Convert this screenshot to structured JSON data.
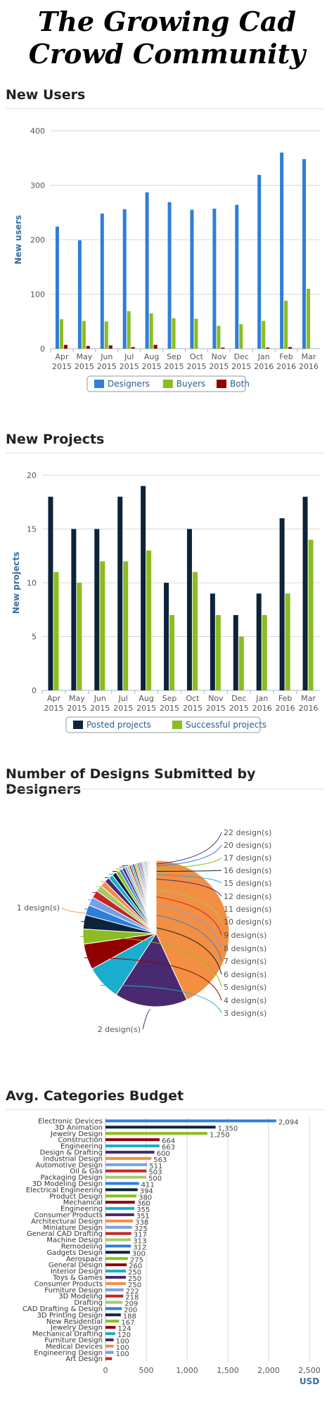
{
  "page": {
    "title": "The Growing Cad Crowd Community"
  },
  "sections": {
    "new_users": "New Users",
    "new_projects": "New Projects",
    "designs": "Number of Designs Submitted by Designers",
    "budget": "Avg. Categories Budget"
  },
  "chart_data": [
    {
      "id": "new_users",
      "type": "bar",
      "title": "New Users",
      "ylabel": "New users",
      "ylim": [
        0,
        400
      ],
      "yticks": [
        0,
        100,
        200,
        300,
        400
      ],
      "grid": true,
      "legend_position": "bottom-center",
      "categories": [
        [
          "Apr",
          "2015"
        ],
        [
          "May",
          "2015"
        ],
        [
          "Jun",
          "2015"
        ],
        [
          "Jul",
          "2015"
        ],
        [
          "Aug",
          "2015"
        ],
        [
          "Sep",
          "2015"
        ],
        [
          "Oct",
          "2015"
        ],
        [
          "Nov",
          "2015"
        ],
        [
          "Dec",
          "2015"
        ],
        [
          "Jan",
          "2016"
        ],
        [
          "Feb",
          "2016"
        ],
        [
          "Mar",
          "2016"
        ]
      ],
      "series": [
        {
          "name": "Designers",
          "color": "#2f7ed8",
          "values": [
            224,
            199,
            248,
            256,
            287,
            269,
            255,
            257,
            264,
            319,
            360,
            348
          ]
        },
        {
          "name": "Buyers",
          "color": "#8bbc21",
          "values": [
            54,
            51,
            50,
            69,
            65,
            56,
            55,
            42,
            45,
            51,
            88,
            110
          ]
        },
        {
          "name": "Both",
          "color": "#910000",
          "values": [
            7,
            5,
            6,
            3,
            7,
            0,
            0,
            2,
            0,
            2,
            3,
            0
          ]
        }
      ]
    },
    {
      "id": "new_projects",
      "type": "bar",
      "title": "New Projects",
      "ylabel": "New projects",
      "ylim": [
        0,
        20
      ],
      "yticks": [
        0,
        5,
        10,
        15,
        20
      ],
      "grid": true,
      "legend_position": "bottom-center",
      "categories": [
        [
          "Apr",
          "2015"
        ],
        [
          "May",
          "2015"
        ],
        [
          "Jun",
          "2015"
        ],
        [
          "Jul",
          "2015"
        ],
        [
          "Aug",
          "2015"
        ],
        [
          "Sep",
          "2015"
        ],
        [
          "Oct",
          "2015"
        ],
        [
          "Nov",
          "2015"
        ],
        [
          "Dec",
          "2015"
        ],
        [
          "Jan",
          "2016"
        ],
        [
          "Feb",
          "2016"
        ],
        [
          "Mar",
          "2016"
        ]
      ],
      "series": [
        {
          "name": "Posted projects",
          "color": "#0d233a",
          "values": [
            18,
            15,
            15,
            18,
            19,
            10,
            15,
            9,
            7,
            9,
            16,
            18
          ]
        },
        {
          "name": "Successful projects",
          "color": "#8bbc21",
          "values": [
            11,
            10,
            12,
            12,
            13,
            7,
            11,
            7,
            5,
            7,
            9,
            14
          ]
        }
      ]
    },
    {
      "id": "designs",
      "type": "pie",
      "title": "Number of Designs Submitted by Designers",
      "slices": [
        {
          "label": "1 design(s)",
          "value": 41.5,
          "color": "#f28f43"
        },
        {
          "label": "2 design(s)",
          "value": 15.5,
          "color": "#492970"
        },
        {
          "label": "3 design(s)",
          "value": 7.5,
          "color": "#1aadce"
        },
        {
          "label": "4 design(s)",
          "value": 5.5,
          "color": "#910000"
        },
        {
          "label": "5 design(s)",
          "value": 3.2,
          "color": "#8bbc21"
        },
        {
          "label": "6 design(s)",
          "value": 3.0,
          "color": "#0d233a"
        },
        {
          "label": "7 design(s)",
          "value": 2.2,
          "color": "#2f7ed8"
        },
        {
          "label": "8 design(s)",
          "value": 1.8,
          "color": "#77a1e5"
        },
        {
          "label": "9 design(s)",
          "value": 1.6,
          "color": "#c42525"
        },
        {
          "label": "10 design(s)",
          "value": 1.4,
          "color": "#a6c96a"
        },
        {
          "label": "11 design(s)",
          "value": 1.2,
          "color": "#f28f43"
        },
        {
          "label": "12 design(s)",
          "value": 1.1,
          "color": "#492970"
        },
        {
          "label": "15 design(s)",
          "value": 1.0,
          "color": "#1aadce"
        },
        {
          "label": "16 design(s)",
          "value": 0.9,
          "color": "#0d233a"
        },
        {
          "label": "17 design(s)",
          "value": 0.8,
          "color": "#8bbc21"
        },
        {
          "label": "20 design(s)",
          "value": 0.7,
          "color": "#2f7ed8"
        },
        {
          "label": "22 design(s)",
          "value": 0.6,
          "color": "#492970"
        },
        {
          "label": "",
          "value": 0.5,
          "color": "#77a1e5"
        },
        {
          "label": "",
          "value": 0.45,
          "color": "#a6c96a"
        },
        {
          "label": "",
          "value": 0.42,
          "color": "#c42525"
        },
        {
          "label": "",
          "value": 0.4,
          "color": "#1aadce"
        },
        {
          "label": "",
          "value": 0.38,
          "color": "#0d233a"
        },
        {
          "label": "",
          "value": 0.35,
          "color": "#f28f43"
        },
        {
          "label": "",
          "value": 0.33,
          "color": "#8bbc21"
        },
        {
          "label": "",
          "value": 0.3,
          "color": "#492970"
        },
        {
          "label": "",
          "value": 0.3,
          "color": "#2f7ed8"
        },
        {
          "label": "",
          "value": 0.28,
          "color": "#910000"
        },
        {
          "label": "",
          "value": 0.26,
          "color": "#77a1e5"
        },
        {
          "label": "",
          "value": 0.25,
          "color": "#a6c96a"
        },
        {
          "label": "",
          "value": 0.24,
          "color": "#1aadce"
        },
        {
          "label": "",
          "value": 0.22,
          "color": "#c42525"
        },
        {
          "label": "",
          "value": 0.2,
          "color": "#0d233a"
        },
        {
          "label": "",
          "value": 0.2,
          "color": "#f28f43"
        },
        {
          "label": "",
          "value": 0.18,
          "color": "#8bbc21"
        },
        {
          "label": "",
          "value": 0.17,
          "color": "#492970"
        },
        {
          "label": "",
          "value": 0.16,
          "color": "#2f7ed8"
        },
        {
          "label": "",
          "value": 0.15,
          "color": "#77a1e5"
        },
        {
          "label": "",
          "value": 0.15,
          "color": "#c42525"
        },
        {
          "label": "",
          "value": 0.14,
          "color": "#a6c96a"
        },
        {
          "label": "",
          "value": 0.13,
          "color": "#1aadce"
        },
        {
          "label": "",
          "value": 0.12,
          "color": "#0d233a"
        },
        {
          "label": "",
          "value": 0.12,
          "color": "#f28f43"
        },
        {
          "label": "",
          "value": 0.11,
          "color": "#8bbc21"
        },
        {
          "label": "",
          "value": 0.1,
          "color": "#492970"
        },
        {
          "label": "",
          "value": 0.1,
          "color": "#2f7ed8"
        },
        {
          "label": "",
          "value": 0.1,
          "color": "#910000"
        }
      ]
    },
    {
      "id": "budget",
      "type": "bar",
      "orientation": "horizontal",
      "title": "Avg. Categories Budget",
      "xlabel": "USD",
      "xlim": [
        0,
        2500
      ],
      "xticks": [
        0,
        500,
        1000,
        1500,
        2000,
        2500
      ],
      "grid": true,
      "categories": [
        "Electronic Devices",
        "3D Animation",
        "Jewelry Design",
        "Construction",
        "Engineering",
        "Design & Drafting",
        "Industrial Design",
        "Automotive Design",
        "Oil & Gas",
        "Packaging Design",
        "3D Modeling Design",
        "Electrical Engineering",
        "Product Design",
        "Mechanical",
        "Engineering",
        "Consumer Products",
        "Architectural Design",
        "Miniature Design",
        "General CAD Drafting",
        "Machine Design",
        "Remodeling",
        "Gadgets Design",
        "Aerospace",
        "General Design",
        "Interior Design",
        "Toys & Games",
        "Consumer Products",
        "Furniture Design",
        "3D Modeling",
        "Drafting",
        "CAD Drafting & Design",
        "3D Printing Design",
        "New Residential",
        "Jewelry Design",
        "Mechanical Drafting",
        "Furniture Design",
        "Medical Devices",
        "Engineering Design",
        "Art Design"
      ],
      "values": [
        2094,
        1350,
        1250,
        664,
        663,
        600,
        563,
        511,
        503,
        500,
        411,
        394,
        380,
        360,
        355,
        351,
        338,
        325,
        317,
        313,
        312,
        300,
        275,
        260,
        250,
        250,
        250,
        222,
        218,
        209,
        200,
        188,
        167,
        124,
        120,
        100,
        100,
        100,
        80
      ],
      "value_labels": [
        "2,094",
        "1,350",
        "1,250",
        "664",
        "663",
        "600",
        "563",
        "511",
        "503",
        "500",
        "411",
        "394",
        "380",
        "360",
        "355",
        "351",
        "338",
        "325",
        "317",
        "313",
        "312",
        "300",
        "275",
        "260",
        "250",
        "250",
        "250",
        "222",
        "218",
        "209",
        "200",
        "188",
        "167",
        "124",
        "120",
        "100",
        "100",
        "100",
        ""
      ],
      "colors": [
        "#2f7ed8",
        "#0d233a",
        "#8bbc21",
        "#910000",
        "#1aadce",
        "#492970",
        "#f28f43",
        "#77a1e5",
        "#c42525",
        "#a6c96a"
      ]
    }
  ]
}
